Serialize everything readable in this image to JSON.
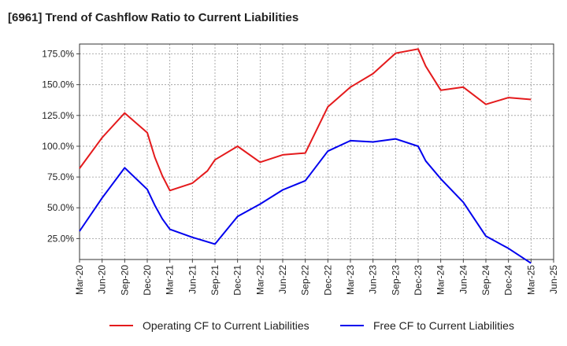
{
  "chart_data": {
    "type": "line",
    "title": "[6961]  Trend of Cashflow Ratio to Current Liabilities",
    "xlabel": "",
    "ylabel": "",
    "x_ticks": [
      "Mar-20",
      "Jun-20",
      "Sep-20",
      "Dec-20",
      "Mar-21",
      "Jun-21",
      "Sep-21",
      "Dec-21",
      "Mar-22",
      "Jun-22",
      "Sep-22",
      "Dec-22",
      "Mar-23",
      "Jun-23",
      "Sep-23",
      "Dec-23",
      "Mar-24",
      "Jun-24",
      "Sep-24",
      "Dec-24",
      "Mar-25",
      "Jun-25"
    ],
    "y_ticks": [
      25,
      50,
      75,
      100,
      125,
      150,
      175
    ],
    "y_tick_labels": [
      "25.0%",
      "50.0%",
      "75.0%",
      "100.0%",
      "125.0%",
      "150.0%",
      "175.0%"
    ],
    "ylim": [
      8,
      183
    ],
    "grid": true,
    "legend_position": "bottom",
    "series": [
      {
        "name": "Operating CF to Current Liabilities",
        "color": "#e41a1c",
        "points": [
          [
            "Mar-20",
            82
          ],
          [
            "Jun-20",
            107
          ],
          [
            "Sep-20",
            127
          ],
          [
            "Dec-20",
            111
          ],
          [
            "Jan-21",
            91
          ],
          [
            "Feb-21",
            76
          ],
          [
            "Mar-21",
            64
          ],
          [
            "Jun-21",
            70
          ],
          [
            "Aug-21",
            80
          ],
          [
            "Sep-21",
            89
          ],
          [
            "Dec-21",
            100
          ],
          [
            "Mar-22",
            87
          ],
          [
            "Jun-22",
            93
          ],
          [
            "Sep-22",
            94.5
          ],
          [
            "Dec-22",
            132
          ],
          [
            "Mar-23",
            148
          ],
          [
            "Jun-23",
            159
          ],
          [
            "Sep-23",
            175.5
          ],
          [
            "Dec-23",
            179
          ],
          [
            "Jan-24",
            165
          ],
          [
            "Mar-24",
            145.5
          ],
          [
            "Jun-24",
            148
          ],
          [
            "Sep-24",
            134
          ],
          [
            "Dec-24",
            139.5
          ],
          [
            "Mar-25",
            138
          ]
        ]
      },
      {
        "name": "Free CF to Current Liabilities",
        "color": "#0000ee",
        "points": [
          [
            "Mar-20",
            31
          ],
          [
            "Jun-20",
            58
          ],
          [
            "Sep-20",
            82.5
          ],
          [
            "Dec-20",
            65
          ],
          [
            "Jan-21",
            52
          ],
          [
            "Feb-21",
            41
          ],
          [
            "Mar-21",
            32.5
          ],
          [
            "Jun-21",
            26
          ],
          [
            "Sep-21",
            20.5
          ],
          [
            "Dec-21",
            43
          ],
          [
            "Mar-22",
            53
          ],
          [
            "Jun-22",
            64.5
          ],
          [
            "Sep-22",
            72
          ],
          [
            "Dec-22",
            96
          ],
          [
            "Mar-23",
            104.5
          ],
          [
            "Jun-23",
            103.5
          ],
          [
            "Sep-23",
            106
          ],
          [
            "Dec-23",
            100
          ],
          [
            "Jan-24",
            88
          ],
          [
            "Mar-24",
            73.5
          ],
          [
            "Jun-24",
            54.5
          ],
          [
            "Sep-24",
            27
          ],
          [
            "Dec-24",
            17
          ],
          [
            "Mar-25",
            5
          ]
        ]
      }
    ]
  }
}
